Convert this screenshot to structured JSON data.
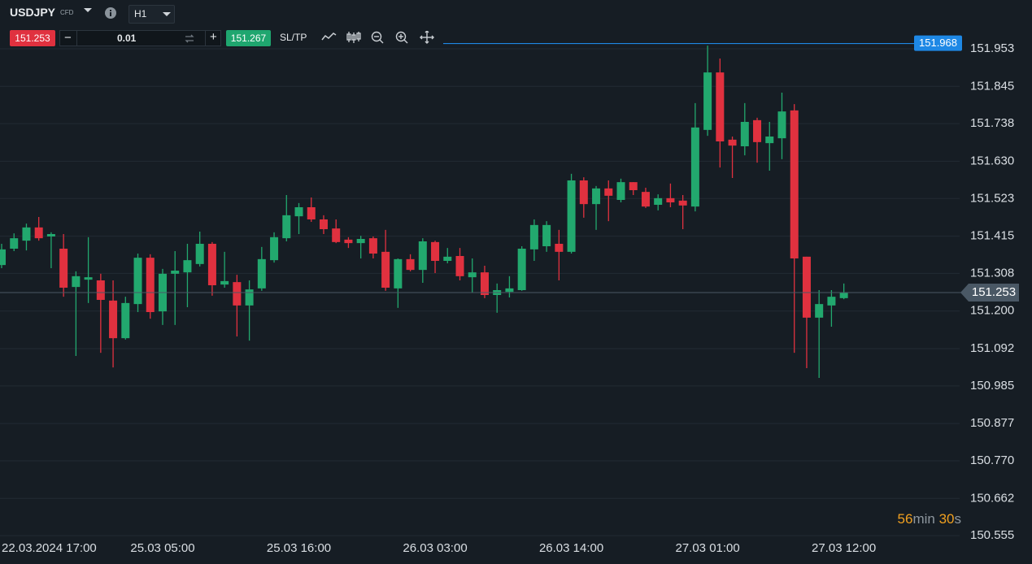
{
  "toolbar": {
    "symbol": "USDJPY",
    "symbol_kind": "CFD",
    "timeframe": "H1",
    "bid": "151.253",
    "lot": "0.01",
    "ask": "151.267",
    "sl_tp": "SL/TP"
  },
  "chart_data": {
    "type": "candlestick",
    "categories": [
      null,
      null,
      "22.03.2024 17:00",
      null,
      null,
      null,
      null,
      null,
      null,
      null,
      null,
      null,
      null,
      "25.03 05:00",
      null,
      null,
      null,
      null,
      null,
      null,
      null,
      null,
      null,
      null,
      "25.03 16:00",
      null,
      null,
      null,
      null,
      null,
      null,
      null,
      null,
      null,
      null,
      "26.03 03:00",
      null,
      null,
      null,
      null,
      null,
      null,
      null,
      null,
      null,
      null,
      "26.03 14:00",
      null,
      null,
      null,
      null,
      null,
      null,
      null,
      null,
      null,
      null,
      "27.03 01:00",
      null,
      null,
      null,
      null,
      null,
      null,
      null,
      null,
      null,
      null,
      "27.03 12:00"
    ],
    "open": [
      151.332,
      151.379,
      151.402,
      151.44,
      151.414,
      151.379,
      151.269,
      151.29,
      151.288,
      151.23,
      151.122,
      151.22,
      151.353,
      151.199,
      151.307,
      151.311,
      151.335,
      151.393,
      151.276,
      151.283,
      151.216,
      151.265,
      151.346,
      151.409,
      151.472,
      151.498,
      151.463,
      151.437,
      151.405,
      151.395,
      151.409,
      151.37,
      151.265,
      151.349,
      151.318,
      151.398,
      151.344,
      151.358,
      151.297,
      151.311,
      151.246,
      151.255,
      151.26,
      151.377,
      151.386,
      151.393,
      151.37,
      151.575,
      151.507,
      151.552,
      151.519,
      151.57,
      151.542,
      151.505,
      151.524,
      151.517,
      151.5,
      151.72,
      151.885,
      151.692,
      151.673,
      151.748,
      151.682,
      151.696,
      151.776,
      151.356,
      151.181,
      151.216,
      151.237
    ],
    "high": [
      151.393,
      151.423,
      151.451,
      151.47,
      151.426,
      151.421,
      151.314,
      151.412,
      151.307,
      151.288,
      151.241,
      151.365,
      151.363,
      151.321,
      151.372,
      151.393,
      151.428,
      151.398,
      151.37,
      151.304,
      151.288,
      151.384,
      151.426,
      151.533,
      151.51,
      151.526,
      151.475,
      151.463,
      151.412,
      151.416,
      151.414,
      151.433,
      151.351,
      151.363,
      151.409,
      151.402,
      151.381,
      151.381,
      151.351,
      151.33,
      151.279,
      151.3,
      151.386,
      151.463,
      151.458,
      151.433,
      151.594,
      151.584,
      151.559,
      151.575,
      151.58,
      151.57,
      151.554,
      151.535,
      151.566,
      151.533,
      151.797,
      151.962,
      151.925,
      151.701,
      151.797,
      151.755,
      151.743,
      151.827,
      151.794,
      151.356,
      151.26,
      151.26,
      151.279
    ],
    "low": [
      151.323,
      151.372,
      151.374,
      151.402,
      151.323,
      151.241,
      151.071,
      151.223,
      151.08,
      151.038,
      151.118,
      151.197,
      151.178,
      151.16,
      151.16,
      151.211,
      151.328,
      151.244,
      151.267,
      151.127,
      151.115,
      151.258,
      151.339,
      151.4,
      151.421,
      151.456,
      151.421,
      151.395,
      151.381,
      151.351,
      151.351,
      151.258,
      151.209,
      151.314,
      151.281,
      151.309,
      151.337,
      151.288,
      151.253,
      151.237,
      151.195,
      151.239,
      151.258,
      151.344,
      151.37,
      151.288,
      151.365,
      151.468,
      151.433,
      151.458,
      151.512,
      151.533,
      151.496,
      151.489,
      151.498,
      151.435,
      151.486,
      151.703,
      151.612,
      151.582,
      151.647,
      151.626,
      151.603,
      151.636,
      151.08,
      151.036,
      151.008,
      151.155,
      151.234
    ],
    "close": [
      151.377,
      151.409,
      151.44,
      151.409,
      151.421,
      151.267,
      151.3,
      151.297,
      151.232,
      151.122,
      151.223,
      151.353,
      151.197,
      151.307,
      151.316,
      151.346,
      151.393,
      151.274,
      151.286,
      151.216,
      151.262,
      151.349,
      151.412,
      151.475,
      151.498,
      151.463,
      151.435,
      151.398,
      151.395,
      151.407,
      151.365,
      151.267,
      151.349,
      151.318,
      151.4,
      151.344,
      151.356,
      151.3,
      151.311,
      151.246,
      151.26,
      151.265,
      151.379,
      151.447,
      151.447,
      151.37,
      151.575,
      151.507,
      151.552,
      151.531,
      151.57,
      151.547,
      151.5,
      151.524,
      151.512,
      151.503,
      151.727,
      151.885,
      151.687,
      151.675,
      151.743,
      151.685,
      151.701,
      151.773,
      151.351,
      151.181,
      151.22,
      151.241,
      151.253
    ],
    "up_color": "#22a86e",
    "down_color": "#e0313f",
    "ylim": [
      150.553,
      152.093
    ],
    "yticks": [
      151.953,
      151.845,
      151.738,
      {
        "value": 151.63,
        "label": "151.630"
      },
      151.523,
      151.415,
      151.308,
      {
        "value": 151.2,
        "label": "151.200"
      },
      151.092,
      150.985,
      150.877,
      {
        "value": 150.77,
        "label": "150.770"
      },
      150.662,
      150.555
    ],
    "grid": true,
    "price_lines": [
      {
        "value": 151.968,
        "color": "#1e88e5"
      },
      {
        "value": 151.253,
        "color": "#4a5865"
      }
    ]
  },
  "countdown": {
    "minutes": "56",
    "minutes_unit": "min",
    "seconds": "30",
    "seconds_unit": "s"
  }
}
